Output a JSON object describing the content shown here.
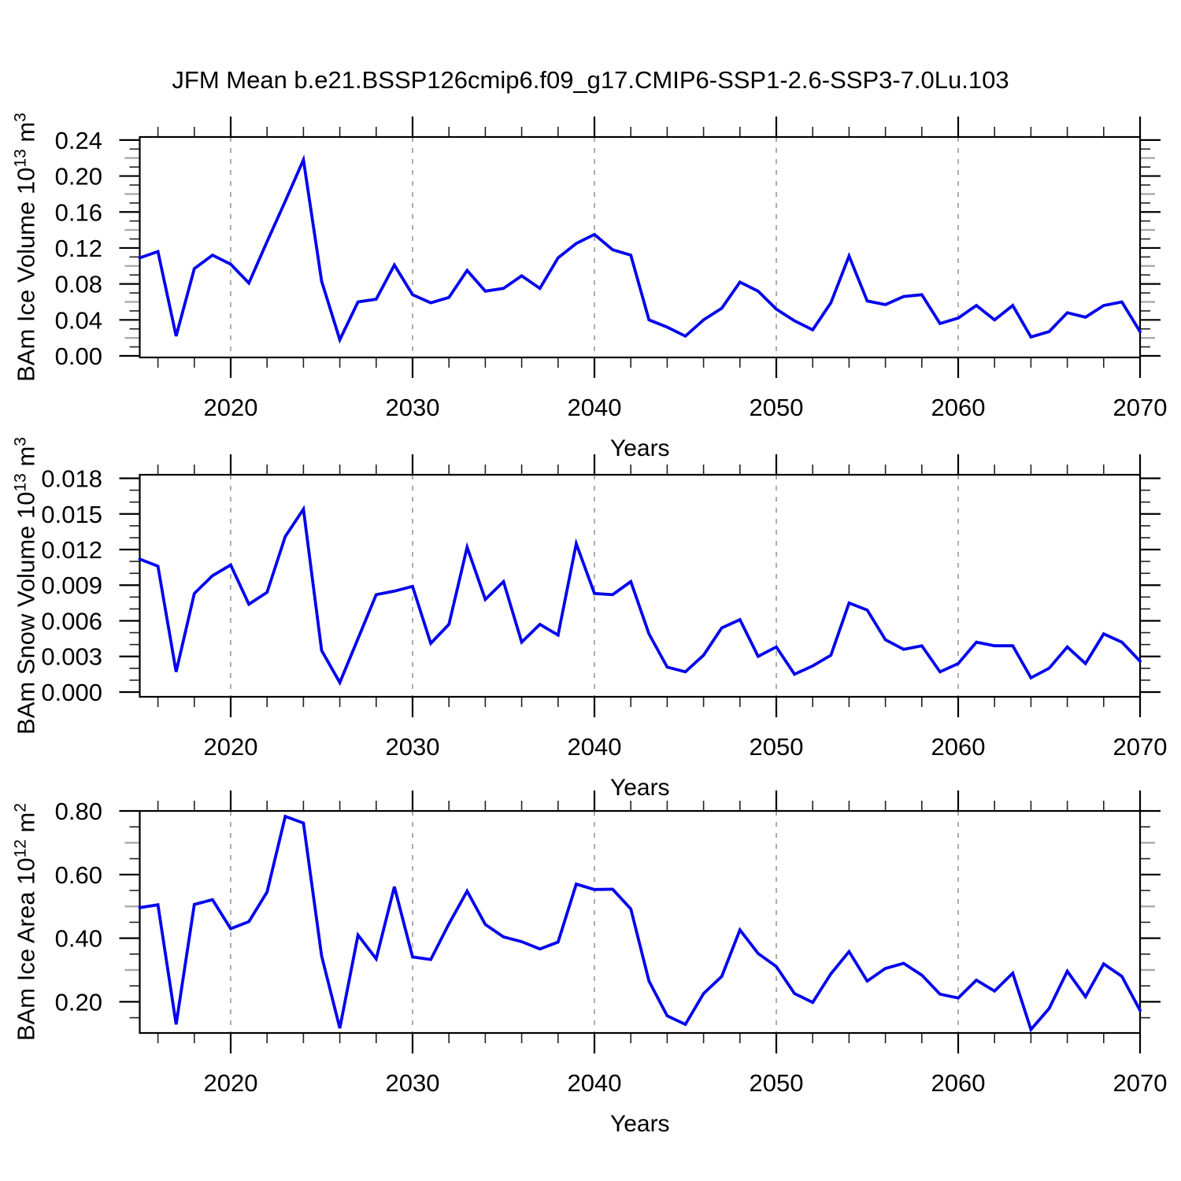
{
  "title": "JFM Mean b.e21.BSSP126cmip6.f09_g17.CMIP6-SSP1-2.6-SSP3-7.0Lu.103",
  "line_color": "#0000ee",
  "gridline_color": "#808080",
  "chart_data": {
    "type": "line",
    "title": "JFM Mean b.e21.BSSP126cmip6.f09_g17.CMIP6-SSP1-2.6-SSP3-7.0Lu.103",
    "legend_position": "none",
    "grid": "dashed vertical gridlines at decades",
    "x": {
      "label": "Years",
      "start": 2015,
      "end": 2070,
      "major_ticks": [
        2020,
        2030,
        2040,
        2050,
        2060,
        2070
      ],
      "tick_labels": [
        "2020",
        "2030",
        "2040",
        "2050",
        "2060",
        "2070"
      ],
      "minor_step": 2,
      "gridline_years": [
        2020,
        2030,
        2040,
        2050,
        2060
      ]
    },
    "panels": [
      {
        "name": "ice_volume",
        "ylabel": {
          "text": "BAm Ice Volume",
          "base": "10",
          "power": "13",
          "unit": "m",
          "unit_power": "3"
        },
        "ylim": [
          -0.00175,
          0.2434
        ],
        "yticks": [
          0.0,
          0.04,
          0.08,
          0.12,
          0.16,
          0.2,
          0.24
        ],
        "ytick_labels": [
          "0.00",
          "0.04",
          "0.08",
          "0.12",
          "0.16",
          "0.20",
          "0.24"
        ],
        "minor_step": 0.01,
        "mid_step": 0.02,
        "values": [
          0.109,
          0.116,
          0.022,
          0.097,
          0.112,
          0.102,
          0.081,
          0.127,
          0.172,
          0.218,
          0.083,
          0.018,
          0.06,
          0.063,
          0.101,
          0.068,
          0.059,
          0.065,
          0.095,
          0.072,
          0.075,
          0.089,
          0.075,
          0.109,
          0.125,
          0.135,
          0.118,
          0.112,
          0.04,
          0.032,
          0.022,
          0.04,
          0.053,
          0.082,
          0.072,
          0.052,
          0.039,
          0.029,
          0.059,
          0.111,
          0.061,
          0.057,
          0.066,
          0.068,
          0.036,
          0.042,
          0.056,
          0.04,
          0.056,
          0.021,
          0.027,
          0.048,
          0.043,
          0.056,
          0.06,
          0.027
        ]
      },
      {
        "name": "snow_volume",
        "ylabel": {
          "text": "BAm Snow Volume",
          "base": "10",
          "power": "13",
          "unit": "m",
          "unit_power": "3"
        },
        "ylim": [
          -0.0004,
          0.0183
        ],
        "yticks": [
          0.0,
          0.003,
          0.006,
          0.009,
          0.012,
          0.015,
          0.018
        ],
        "ytick_labels": [
          "0.000",
          "0.003",
          "0.006",
          "0.009",
          "0.012",
          "0.015",
          "0.018"
        ],
        "minor_step": 0.001,
        "mid_step": null,
        "values": [
          0.0112,
          0.0106,
          0.0017,
          0.0083,
          0.0098,
          0.0107,
          0.0074,
          0.0084,
          0.0131,
          0.0154,
          0.0035,
          0.0008,
          0.0045,
          0.0082,
          0.0085,
          0.0089,
          0.0041,
          0.0057,
          0.0122,
          0.0078,
          0.0093,
          0.0042,
          0.0057,
          0.0048,
          0.0125,
          0.0083,
          0.0082,
          0.0093,
          0.0049,
          0.0021,
          0.0017,
          0.0031,
          0.0054,
          0.0061,
          0.003,
          0.0038,
          0.0015,
          0.0022,
          0.0031,
          0.0075,
          0.0069,
          0.0044,
          0.0036,
          0.0039,
          0.0017,
          0.0024,
          0.0042,
          0.0039,
          0.0039,
          0.0012,
          0.002,
          0.0038,
          0.0024,
          0.0049,
          0.0042,
          0.0026
        ]
      },
      {
        "name": "ice_area",
        "ylabel": {
          "text": "BAm Ice Area",
          "base": "10",
          "power": "12",
          "unit": "m",
          "unit_power": "2"
        },
        "ylim": [
          0.102,
          0.8
        ],
        "yticks": [
          0.2,
          0.4,
          0.6,
          0.8
        ],
        "ytick_labels": [
          "0.20",
          "0.40",
          "0.60",
          "0.80"
        ],
        "minor_step": 0.05,
        "mid_step": 0.1,
        "values": [
          0.496,
          0.505,
          0.129,
          0.506,
          0.521,
          0.43,
          0.452,
          0.545,
          0.783,
          0.762,
          0.344,
          0.117,
          0.41,
          0.335,
          0.562,
          0.341,
          0.333,
          0.445,
          0.548,
          0.443,
          0.404,
          0.389,
          0.366,
          0.388,
          0.57,
          0.553,
          0.554,
          0.492,
          0.265,
          0.156,
          0.129,
          0.226,
          0.28,
          0.426,
          0.352,
          0.311,
          0.226,
          0.198,
          0.288,
          0.358,
          0.265,
          0.305,
          0.321,
          0.284,
          0.224,
          0.212,
          0.268,
          0.234,
          0.29,
          0.113,
          0.179,
          0.296,
          0.216,
          0.319,
          0.28,
          0.173
        ]
      }
    ]
  }
}
